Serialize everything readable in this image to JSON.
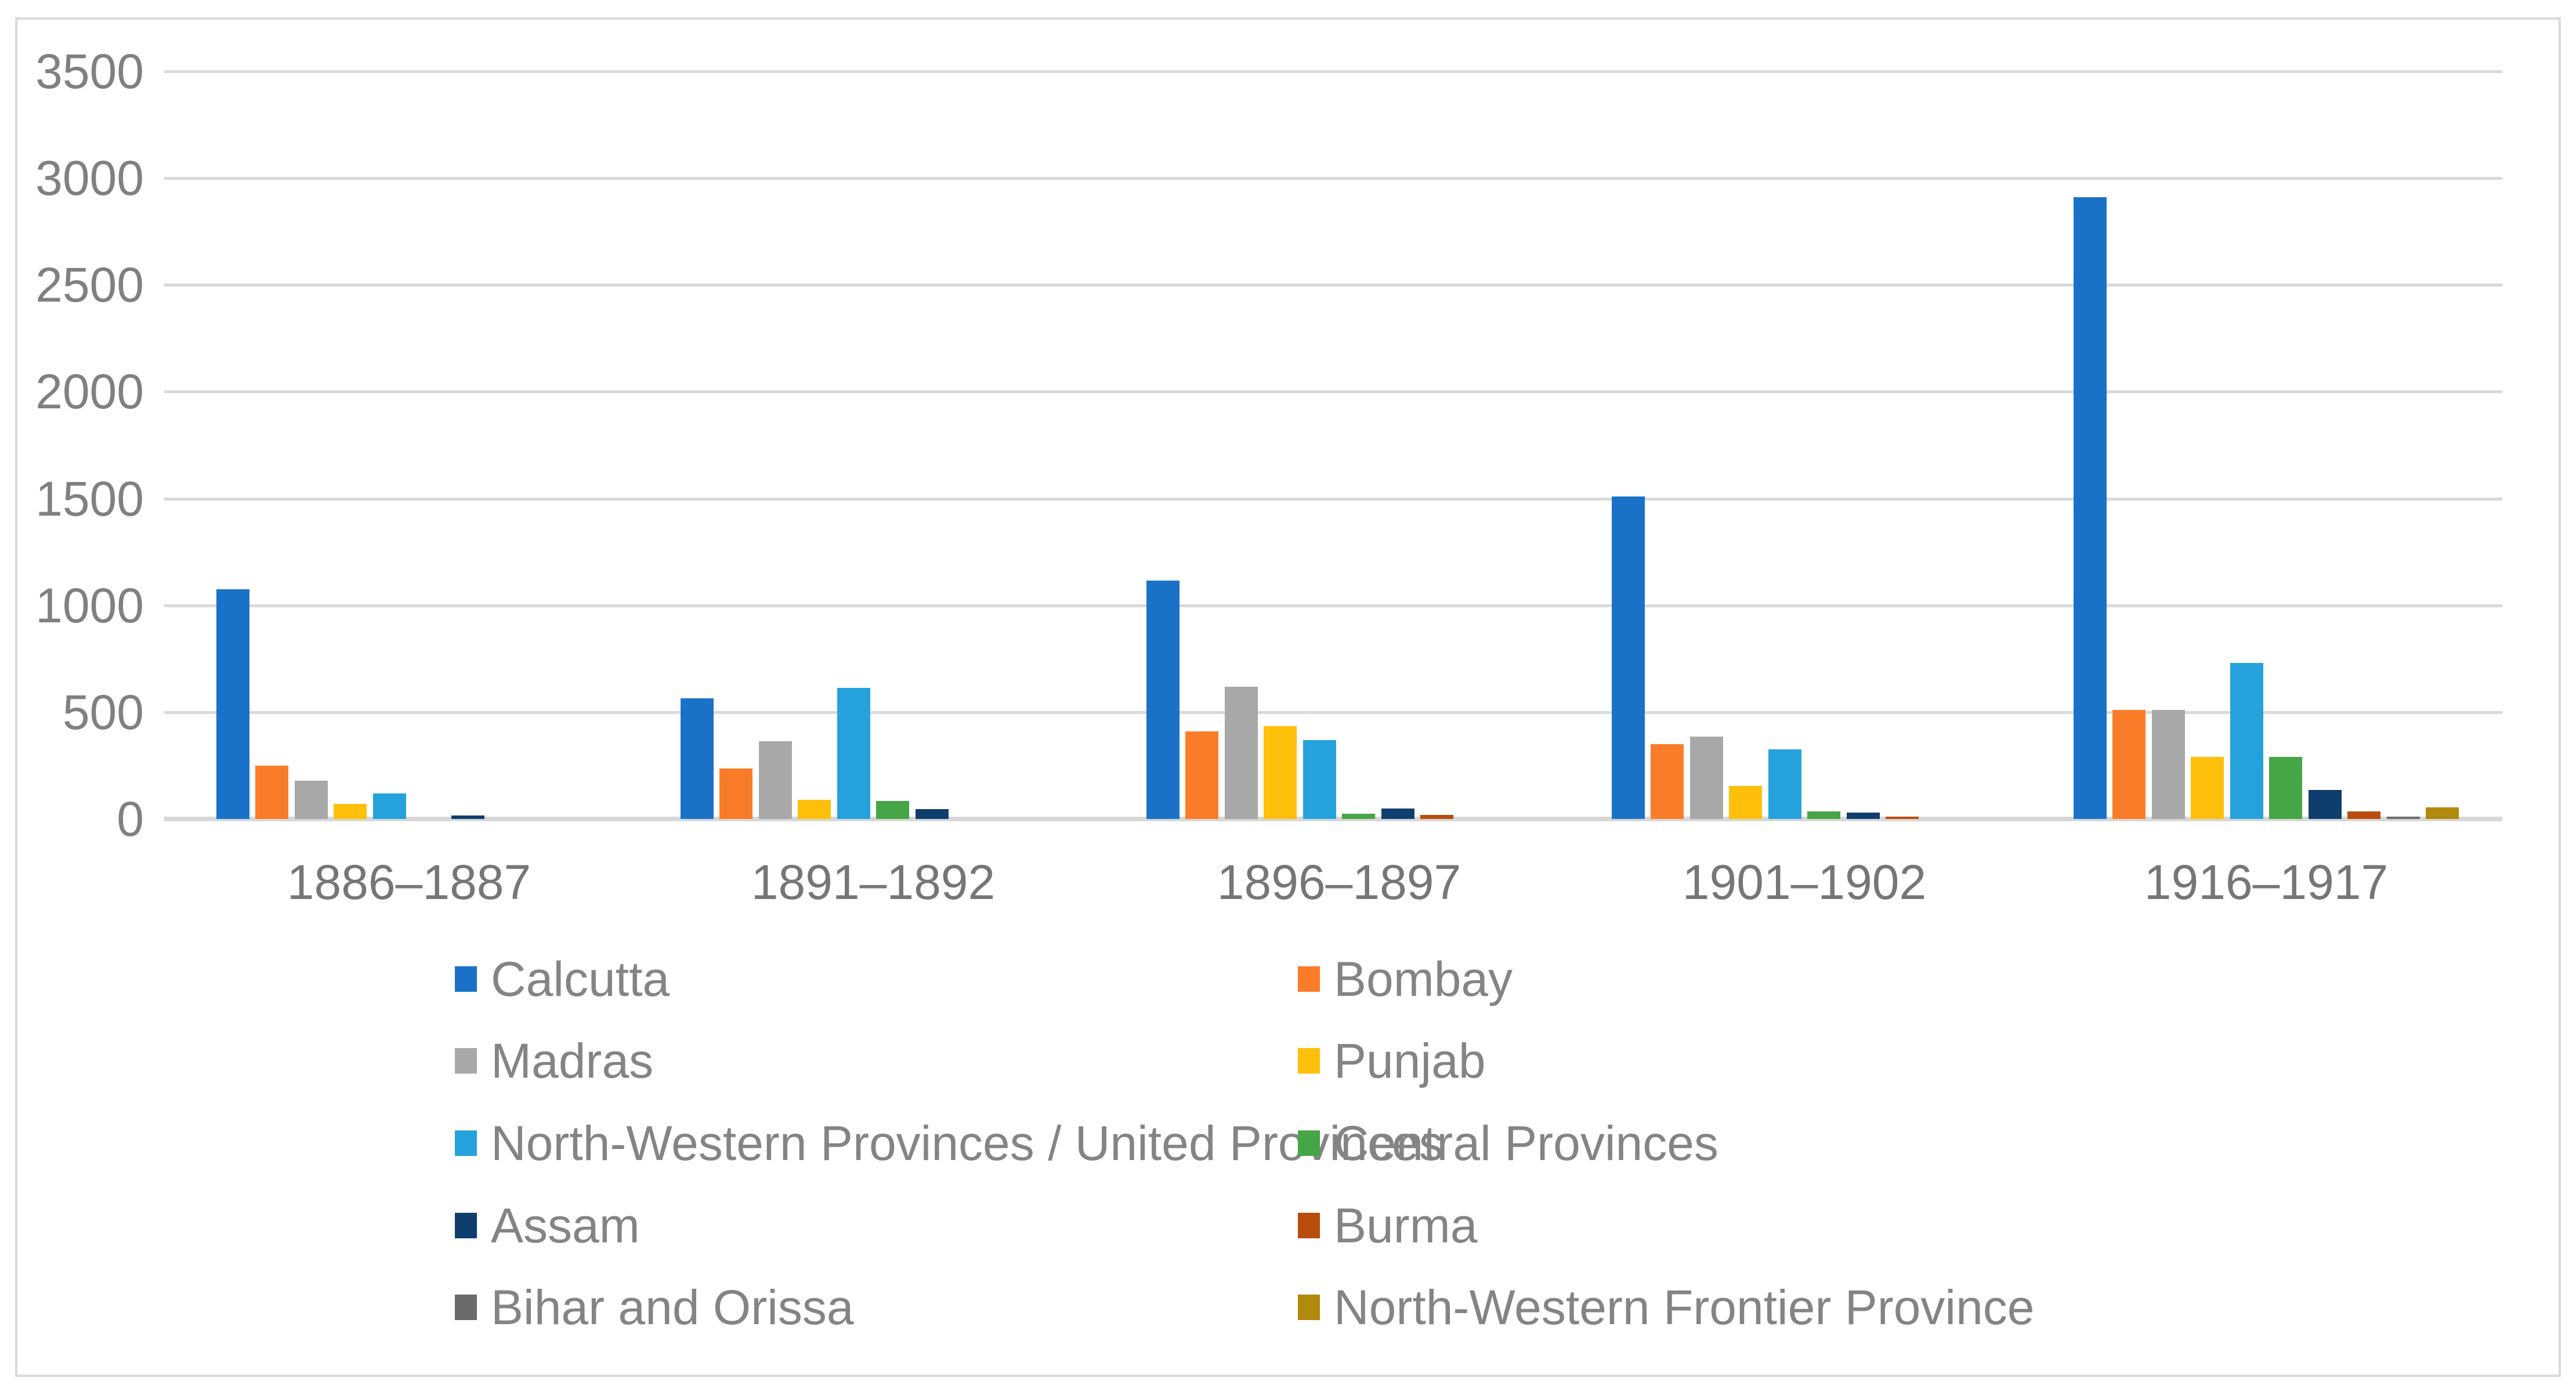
{
  "chart_data": {
    "type": "bar",
    "title": "",
    "xlabel": "",
    "ylabel": "",
    "categories": [
      "1886–1887",
      "1891–1892",
      "1896–1897",
      "1901–1902",
      "1916–1917"
    ],
    "yticks": [
      0,
      500,
      1000,
      1500,
      2000,
      2500,
      3000,
      3500
    ],
    "ylim": [
      0,
      3500
    ],
    "grid": "horizontal",
    "legend_position": "bottom-two-columns",
    "series": [
      {
        "name": "Calcutta",
        "color": "#1a72c8",
        "values": [
          1075,
          565,
          1115,
          1510,
          2910
        ]
      },
      {
        "name": "Bombay",
        "color": "#fb7c28",
        "values": [
          250,
          235,
          410,
          350,
          510
        ]
      },
      {
        "name": "Madras",
        "color": "#a8a8a8",
        "values": [
          180,
          365,
          620,
          385,
          510
        ]
      },
      {
        "name": "Punjab",
        "color": "#ffc00b",
        "values": [
          70,
          90,
          435,
          155,
          290
        ]
      },
      {
        "name": "North-Western Provinces / United Provinces",
        "color": "#25a2db",
        "values": [
          120,
          615,
          370,
          325,
          730
        ]
      },
      {
        "name": "Central Provinces",
        "color": "#46a546",
        "values": [
          0,
          85,
          25,
          35,
          290
        ]
      },
      {
        "name": "Assam",
        "color": "#0e3e6d",
        "values": [
          15,
          45,
          50,
          30,
          135
        ]
      },
      {
        "name": "Burma",
        "color": "#b84d0e",
        "values": [
          0,
          0,
          20,
          10,
          35
        ]
      },
      {
        "name": "Bihar and Orissa",
        "color": "#6b6b6b",
        "values": [
          0,
          0,
          0,
          0,
          10
        ]
      },
      {
        "name": "North-Western Frontier Province",
        "color": "#b0890d",
        "values": [
          0,
          0,
          0,
          0,
          55
        ]
      }
    ]
  },
  "style_colors": {
    "gridline": "#d9d9d9",
    "axis_text": "#808080",
    "legend_text": "#848484",
    "frame_border": "#d9d9d9",
    "background": "#ffffff"
  }
}
